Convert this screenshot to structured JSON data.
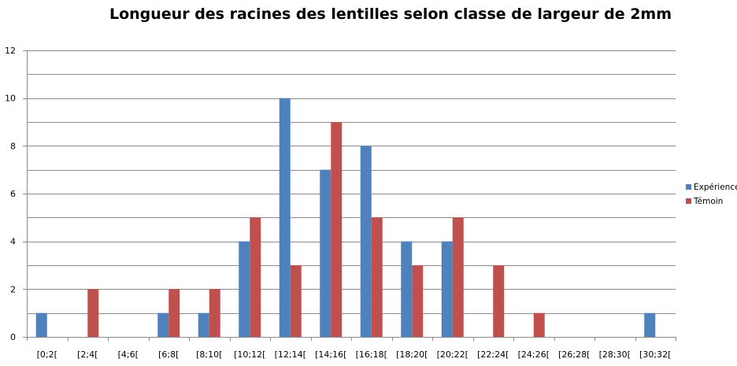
{
  "chart_data": {
    "type": "bar",
    "title": "Longueur des racines des lentilles selon classe de largeur de 2mm",
    "xlabel": "",
    "ylabel": "",
    "ylim": [
      0,
      12
    ],
    "yticks": [
      0,
      2,
      4,
      6,
      8,
      10,
      12
    ],
    "grid": true,
    "legend_position": "right",
    "categories": [
      "[0;2[",
      "[2;4[",
      "[4;6[",
      "[6;8[",
      "[8;10[",
      "[10;12[",
      "[12;14[",
      "[14;16[",
      "[16;18[",
      "[18;20[",
      "[20;22[",
      "[22;24[",
      "[24;26[",
      "[26;28[",
      "[28;30[",
      "[30;32["
    ],
    "series": [
      {
        "name": "Expérience",
        "color": "#4F81BD",
        "values": [
          1,
          0,
          0,
          1,
          1,
          4,
          10,
          7,
          8,
          4,
          4,
          0,
          0,
          0,
          0,
          1
        ]
      },
      {
        "name": "Témoin",
        "color": "#C0504D",
        "values": [
          0,
          2,
          0,
          2,
          2,
          5,
          3,
          9,
          5,
          3,
          5,
          3,
          1,
          0,
          0,
          0
        ]
      }
    ]
  }
}
